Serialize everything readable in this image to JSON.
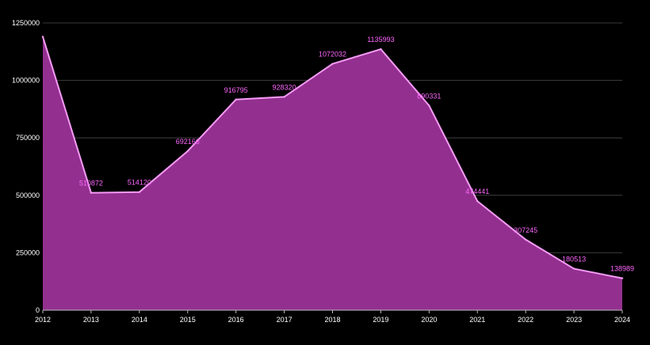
{
  "chart_data": {
    "type": "area",
    "title": "",
    "xlabel": "",
    "ylabel": "",
    "x": [
      "2012",
      "2013",
      "2014",
      "2015",
      "2016",
      "2017",
      "2018",
      "2019",
      "2020",
      "2021",
      "2022",
      "2023",
      "2024"
    ],
    "series": [
      {
        "values": [
          1190000,
          510872,
          514120,
          692166,
          916795,
          928320,
          1072032,
          1135993,
          890331,
          474441,
          307245,
          180513,
          138989
        ],
        "labels": [
          "",
          "510872",
          "514120",
          "692166",
          "916795",
          "928320",
          "1072032",
          "1135993",
          "890331",
          "474441",
          "307245",
          "180513",
          "138989"
        ]
      }
    ],
    "ylim": [
      0,
      1250000
    ],
    "yticks": [
      0,
      250000,
      500000,
      750000,
      1000000,
      1250000
    ],
    "grid": true,
    "legend": "none",
    "colors": {
      "background": "#000000",
      "area_fill": "#93308f",
      "line": "#f59af5",
      "label": "#ff66ff",
      "grid": "#4a4a4a",
      "axis_text": "#ffffff"
    }
  }
}
